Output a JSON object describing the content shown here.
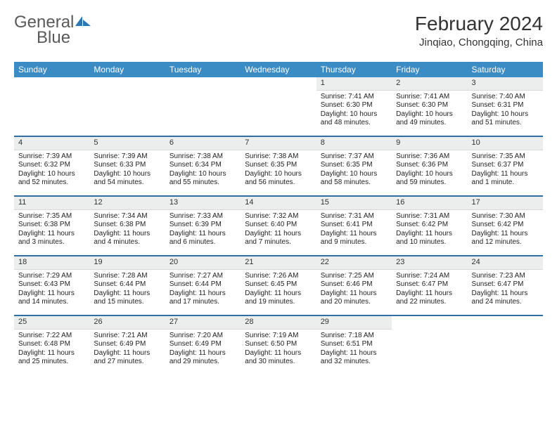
{
  "brand": {
    "text1": "General",
    "text2": "Blue"
  },
  "title": "February 2024",
  "location": "Jinqiao, Chongqing, China",
  "colors": {
    "header_bg": "#3b8bc4",
    "week_sep": "#2f6fa3",
    "daynum_bg": "#eceded",
    "logo_blue": "#2b77b5"
  },
  "weekdays": [
    "Sunday",
    "Monday",
    "Tuesday",
    "Wednesday",
    "Thursday",
    "Friday",
    "Saturday"
  ],
  "weeks": [
    [
      null,
      null,
      null,
      null,
      {
        "n": "1",
        "sr": "7:41 AM",
        "ss": "6:30 PM",
        "dl": "10 hours and 48 minutes."
      },
      {
        "n": "2",
        "sr": "7:41 AM",
        "ss": "6:30 PM",
        "dl": "10 hours and 49 minutes."
      },
      {
        "n": "3",
        "sr": "7:40 AM",
        "ss": "6:31 PM",
        "dl": "10 hours and 51 minutes."
      }
    ],
    [
      {
        "n": "4",
        "sr": "7:39 AM",
        "ss": "6:32 PM",
        "dl": "10 hours and 52 minutes."
      },
      {
        "n": "5",
        "sr": "7:39 AM",
        "ss": "6:33 PM",
        "dl": "10 hours and 54 minutes."
      },
      {
        "n": "6",
        "sr": "7:38 AM",
        "ss": "6:34 PM",
        "dl": "10 hours and 55 minutes."
      },
      {
        "n": "7",
        "sr": "7:38 AM",
        "ss": "6:35 PM",
        "dl": "10 hours and 56 minutes."
      },
      {
        "n": "8",
        "sr": "7:37 AM",
        "ss": "6:35 PM",
        "dl": "10 hours and 58 minutes."
      },
      {
        "n": "9",
        "sr": "7:36 AM",
        "ss": "6:36 PM",
        "dl": "10 hours and 59 minutes."
      },
      {
        "n": "10",
        "sr": "7:35 AM",
        "ss": "6:37 PM",
        "dl": "11 hours and 1 minute."
      }
    ],
    [
      {
        "n": "11",
        "sr": "7:35 AM",
        "ss": "6:38 PM",
        "dl": "11 hours and 3 minutes."
      },
      {
        "n": "12",
        "sr": "7:34 AM",
        "ss": "6:38 PM",
        "dl": "11 hours and 4 minutes."
      },
      {
        "n": "13",
        "sr": "7:33 AM",
        "ss": "6:39 PM",
        "dl": "11 hours and 6 minutes."
      },
      {
        "n": "14",
        "sr": "7:32 AM",
        "ss": "6:40 PM",
        "dl": "11 hours and 7 minutes."
      },
      {
        "n": "15",
        "sr": "7:31 AM",
        "ss": "6:41 PM",
        "dl": "11 hours and 9 minutes."
      },
      {
        "n": "16",
        "sr": "7:31 AM",
        "ss": "6:42 PM",
        "dl": "11 hours and 10 minutes."
      },
      {
        "n": "17",
        "sr": "7:30 AM",
        "ss": "6:42 PM",
        "dl": "11 hours and 12 minutes."
      }
    ],
    [
      {
        "n": "18",
        "sr": "7:29 AM",
        "ss": "6:43 PM",
        "dl": "11 hours and 14 minutes."
      },
      {
        "n": "19",
        "sr": "7:28 AM",
        "ss": "6:44 PM",
        "dl": "11 hours and 15 minutes."
      },
      {
        "n": "20",
        "sr": "7:27 AM",
        "ss": "6:44 PM",
        "dl": "11 hours and 17 minutes."
      },
      {
        "n": "21",
        "sr": "7:26 AM",
        "ss": "6:45 PM",
        "dl": "11 hours and 19 minutes."
      },
      {
        "n": "22",
        "sr": "7:25 AM",
        "ss": "6:46 PM",
        "dl": "11 hours and 20 minutes."
      },
      {
        "n": "23",
        "sr": "7:24 AM",
        "ss": "6:47 PM",
        "dl": "11 hours and 22 minutes."
      },
      {
        "n": "24",
        "sr": "7:23 AM",
        "ss": "6:47 PM",
        "dl": "11 hours and 24 minutes."
      }
    ],
    [
      {
        "n": "25",
        "sr": "7:22 AM",
        "ss": "6:48 PM",
        "dl": "11 hours and 25 minutes."
      },
      {
        "n": "26",
        "sr": "7:21 AM",
        "ss": "6:49 PM",
        "dl": "11 hours and 27 minutes."
      },
      {
        "n": "27",
        "sr": "7:20 AM",
        "ss": "6:49 PM",
        "dl": "11 hours and 29 minutes."
      },
      {
        "n": "28",
        "sr": "7:19 AM",
        "ss": "6:50 PM",
        "dl": "11 hours and 30 minutes."
      },
      {
        "n": "29",
        "sr": "7:18 AM",
        "ss": "6:51 PM",
        "dl": "11 hours and 32 minutes."
      },
      null,
      null
    ]
  ],
  "labels": {
    "sunrise": "Sunrise: ",
    "sunset": "Sunset: ",
    "daylight": "Daylight: "
  }
}
